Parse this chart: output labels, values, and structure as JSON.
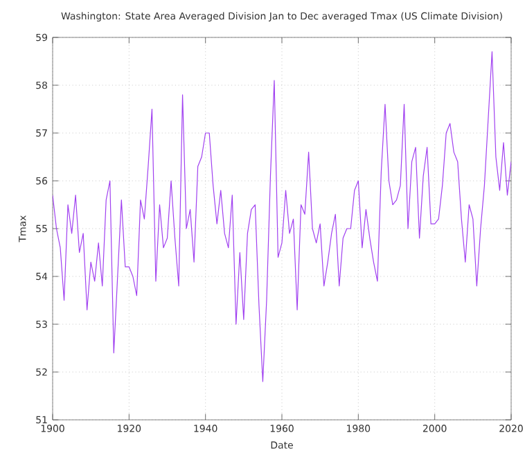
{
  "chart_data": {
    "type": "line",
    "title": "Washington: State Area Averaged Division Jan to Dec averaged Tmax (US Climate Division)",
    "xlabel": "Date",
    "ylabel": "Tmax",
    "x": [
      1900,
      1901,
      1902,
      1903,
      1904,
      1905,
      1906,
      1907,
      1908,
      1909,
      1910,
      1911,
      1912,
      1913,
      1914,
      1915,
      1916,
      1917,
      1918,
      1919,
      1920,
      1921,
      1922,
      1923,
      1924,
      1925,
      1926,
      1927,
      1928,
      1929,
      1930,
      1931,
      1932,
      1933,
      1934,
      1935,
      1936,
      1937,
      1938,
      1939,
      1940,
      1941,
      1942,
      1943,
      1944,
      1945,
      1946,
      1947,
      1948,
      1949,
      1950,
      1951,
      1952,
      1953,
      1954,
      1955,
      1956,
      1957,
      1958,
      1959,
      1960,
      1961,
      1962,
      1963,
      1964,
      1965,
      1966,
      1967,
      1968,
      1969,
      1970,
      1971,
      1972,
      1973,
      1974,
      1975,
      1976,
      1977,
      1978,
      1979,
      1980,
      1981,
      1982,
      1983,
      1984,
      1985,
      1986,
      1987,
      1988,
      1989,
      1990,
      1991,
      1992,
      1993,
      1994,
      1995,
      1996,
      1997,
      1998,
      1999,
      2000,
      2001,
      2002,
      2003,
      2004,
      2005,
      2006,
      2007,
      2008,
      2009,
      2010,
      2011,
      2012,
      2013,
      2014,
      2015,
      2016,
      2017,
      2018,
      2019,
      2020
    ],
    "series": [
      {
        "color": "#a040f0",
        "values": [
          55.7,
          55.0,
          54.6,
          53.5,
          55.5,
          54.9,
          55.7,
          54.5,
          54.9,
          53.3,
          54.3,
          53.9,
          54.7,
          53.8,
          55.6,
          56.0,
          52.4,
          54.0,
          55.6,
          54.2,
          54.2,
          54.0,
          53.6,
          55.6,
          55.2,
          56.3,
          57.5,
          53.9,
          55.5,
          54.6,
          54.8,
          56.0,
          54.8,
          53.8,
          57.8,
          55.0,
          55.4,
          54.3,
          56.3,
          56.5,
          57.0,
          57.0,
          55.9,
          55.1,
          55.8,
          54.9,
          54.6,
          55.7,
          53.0,
          54.5,
          53.1,
          54.9,
          55.4,
          55.5,
          53.4,
          51.8,
          53.5,
          56.1,
          58.1,
          54.4,
          54.7,
          55.8,
          54.9,
          55.2,
          53.3,
          55.5,
          55.3,
          56.6,
          55.0,
          54.7,
          55.1,
          53.8,
          54.3,
          54.9,
          55.3,
          53.8,
          54.8,
          55.0,
          55.0,
          55.8,
          56.0,
          54.6,
          55.4,
          54.8,
          54.3,
          53.9,
          56.2,
          57.6,
          56.0,
          55.5,
          55.6,
          55.9,
          57.6,
          55.0,
          56.4,
          56.7,
          54.8,
          56.1,
          56.7,
          55.1,
          55.1,
          55.2,
          55.9,
          57.0,
          57.2,
          56.6,
          56.4,
          55.2,
          54.3,
          55.5,
          55.2,
          53.8,
          55.0,
          55.9,
          57.3,
          58.7,
          56.5,
          55.8,
          56.8,
          55.7,
          56.4
        ]
      }
    ],
    "xlim": [
      1900,
      2020
    ],
    "xticks": [
      1900,
      1920,
      1940,
      1960,
      1980,
      2000,
      2020
    ],
    "ylim": [
      51,
      59
    ],
    "yticks": [
      51,
      52,
      53,
      54,
      55,
      56,
      57,
      58,
      59
    ],
    "grid": true,
    "marker": "none",
    "line_style": "solid"
  }
}
